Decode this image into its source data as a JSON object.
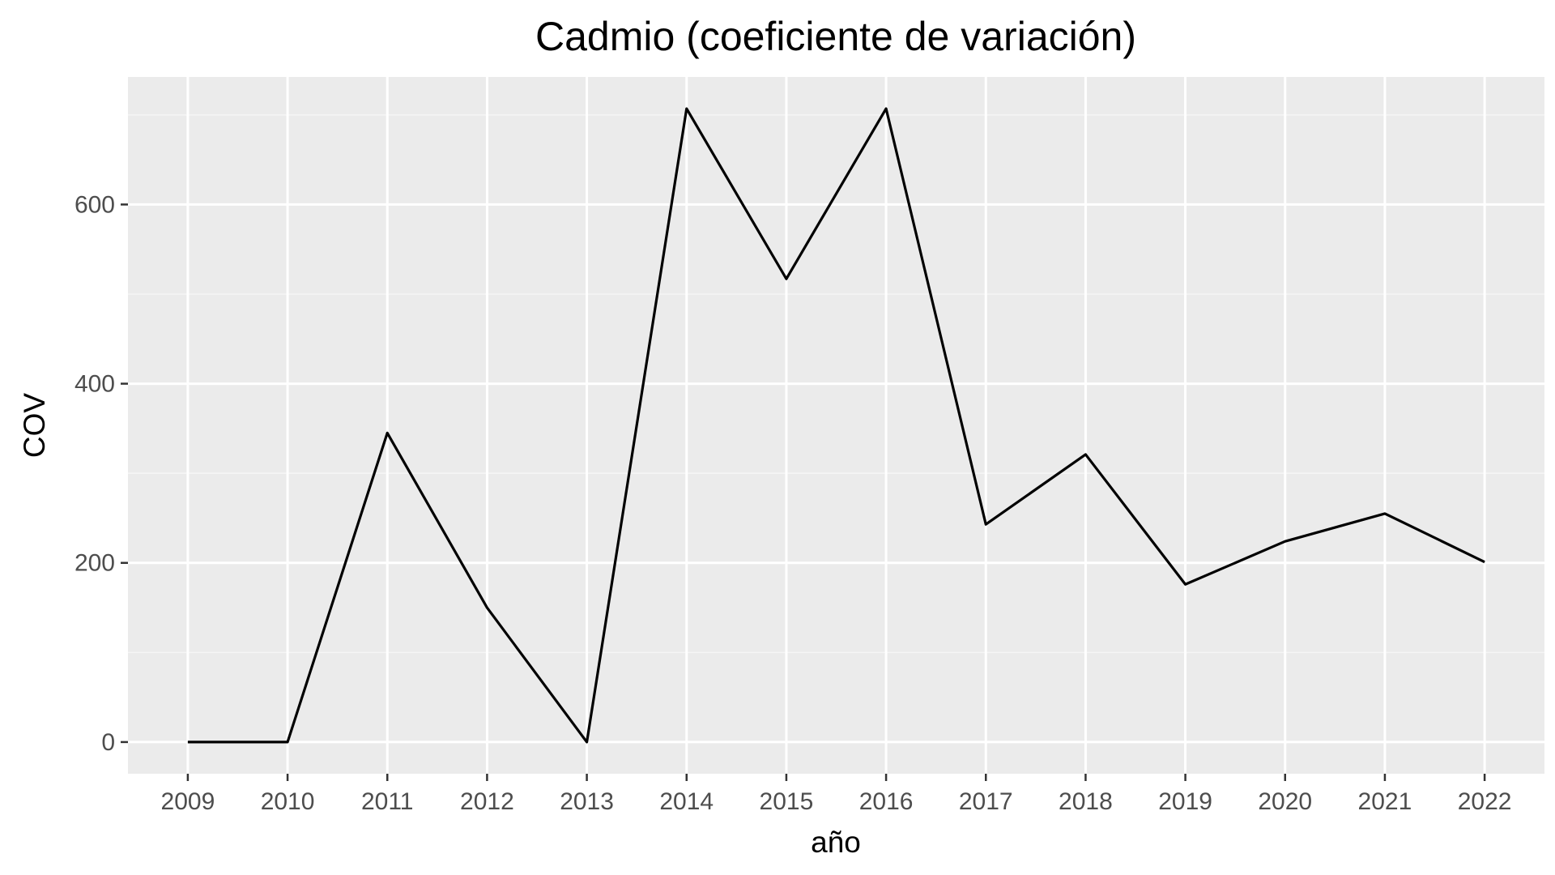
{
  "chart_data": {
    "type": "line",
    "title": "Cadmio (coeficiente de variación)",
    "xlabel": "año",
    "ylabel": "COV",
    "x": [
      2009,
      2010,
      2011,
      2012,
      2013,
      2014,
      2015,
      2016,
      2017,
      2018,
      2019,
      2020,
      2021,
      2022
    ],
    "series": [
      {
        "values": [
          0,
          0,
          345,
          150,
          0,
          707,
          517,
          707,
          243,
          321,
          176,
          224,
          255,
          201
        ]
      }
    ],
    "xticks": [
      "2009",
      "2010",
      "2011",
      "2012",
      "2013",
      "2014",
      "2015",
      "2016",
      "2017",
      "2018",
      "2019",
      "2020",
      "2021",
      "2022"
    ],
    "yticks": [
      0,
      200,
      400,
      600
    ],
    "ytick_labels": [
      "0",
      "200",
      "400",
      "600"
    ],
    "xlim": [
      2008.4,
      2022.6
    ],
    "ylim": [
      -35.35,
      742.35
    ],
    "grid": true,
    "legend": "none",
    "colors": {
      "panel_background": "#ebebeb",
      "grid_major": "#ffffff",
      "grid_minor": "#f5f5f5",
      "line": "#000000",
      "tick_mark": "#333333",
      "tick_label": "#4d4d4d"
    }
  }
}
